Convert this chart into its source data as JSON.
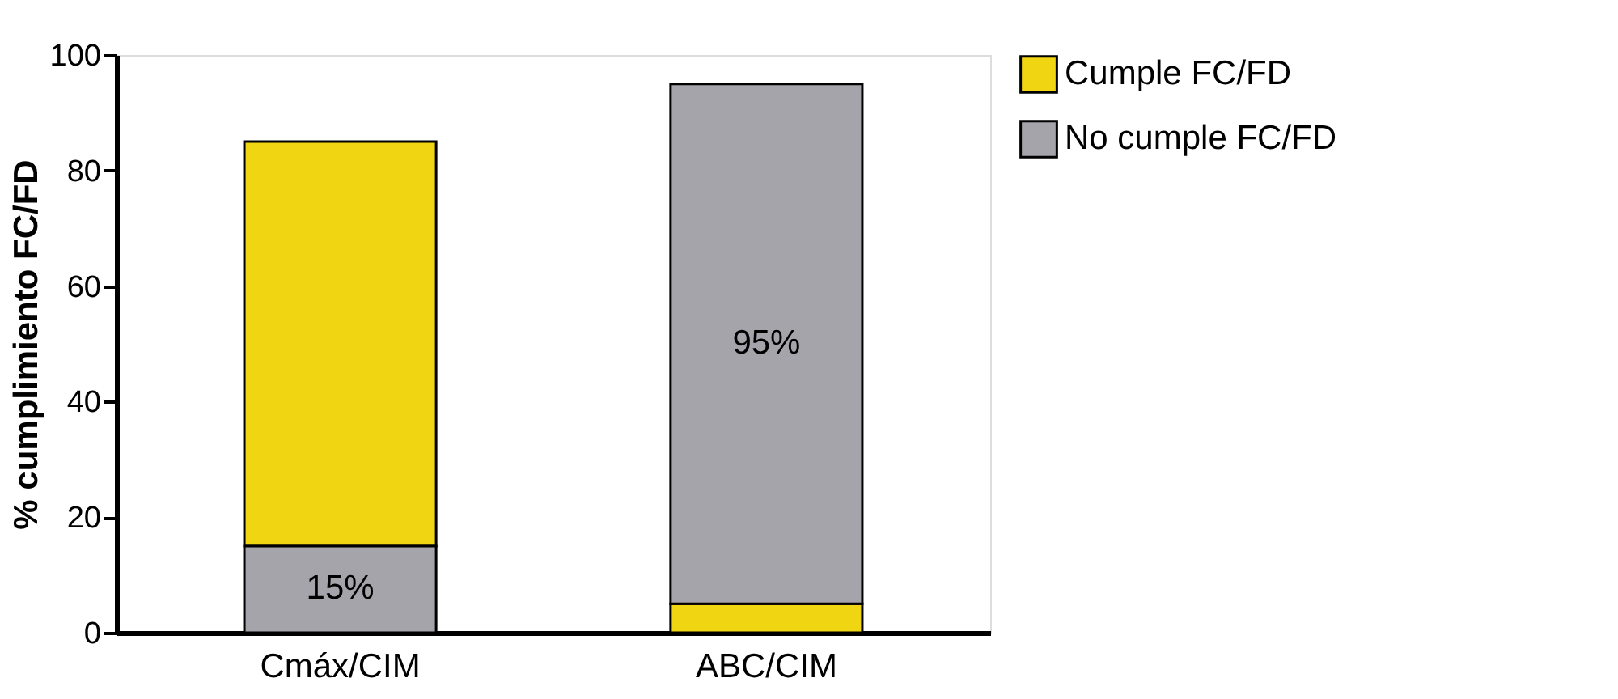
{
  "chart_data": {
    "type": "bar",
    "ylabel": "% cumplimiento FC/FD",
    "categories": [
      "Cmáx/CIM",
      "ABC/CIM"
    ],
    "series": [
      {
        "name": "Cumple FC/FD",
        "color": "#f0d513",
        "values": [
          70,
          5
        ],
        "base": [
          15,
          0
        ]
      },
      {
        "name": "No cumple FC/FD",
        "color": "#a5a4aa",
        "values": [
          15,
          90
        ],
        "base": [
          0,
          5
        ]
      }
    ],
    "ylim": [
      0,
      100
    ],
    "yticks": [
      0,
      20,
      40,
      60,
      80,
      100
    ],
    "annotations": [
      "15%",
      "95%"
    ],
    "grid": false,
    "legend": "right"
  }
}
